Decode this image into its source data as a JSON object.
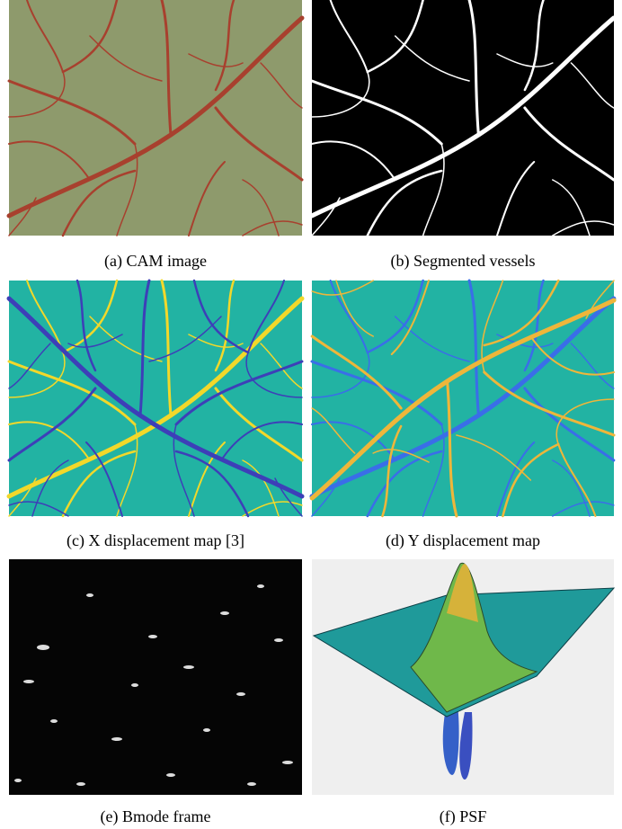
{
  "subfigures": [
    {
      "caption": "(a) CAM image"
    },
    {
      "caption": "(b) Segmented vessels"
    },
    {
      "caption": "(c) X displacement map [3]"
    },
    {
      "caption": "(d) Y displacement map"
    },
    {
      "caption": "(e) Bmode frame"
    },
    {
      "caption": "(f) PSF"
    }
  ]
}
